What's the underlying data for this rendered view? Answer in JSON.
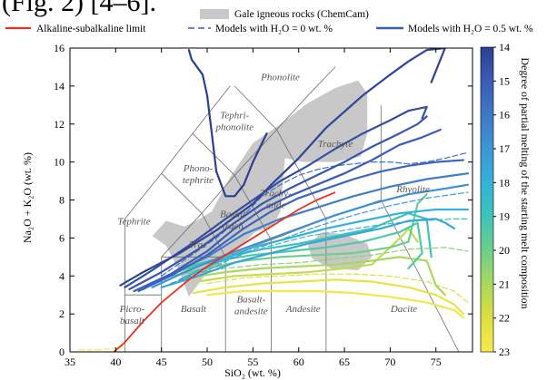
{
  "figure": {
    "caption": "(Fig. 2) [4–6]."
  },
  "legend": {
    "gale": "Gale igneous rocks (ChemCam)",
    "alkaline": "Alkaline-subalkaline limit",
    "models_dry": "Models with H₂O = 0 wt. %",
    "models_wet": "Models with H₂O = 0.5 wt. %"
  },
  "colorbar": {
    "title": "Degree of partial melting of the starting melt composition",
    "ticks": [
      "14",
      "15",
      "16",
      "17",
      "18",
      "19",
      "20",
      "21",
      "22",
      "23"
    ]
  },
  "colors": {
    "gale": "#c8c8c8",
    "alkaline_limit": "#e8321f",
    "tas_lines": "#6e6e6e",
    "colormap": [
      "#2c3f8f",
      "#3b5db6",
      "#3f78c6",
      "#3d96d6",
      "#35b2d8",
      "#3fc3b8",
      "#6ccf8c",
      "#a9d85e",
      "#dde042",
      "#f8e94d"
    ]
  },
  "chart_data": {
    "type": "line",
    "title": "",
    "xlabel": "SiO₂ (wt. %)",
    "ylabel": "Na₂O + K₂O (wt. %)",
    "xlim": [
      35,
      79
    ],
    "ylim": [
      0,
      16
    ],
    "xticks": [
      "35",
      "40",
      "45",
      "50",
      "55",
      "60",
      "65",
      "70",
      "75"
    ],
    "yticks": [
      "0",
      "2",
      "4",
      "6",
      "8",
      "10",
      "12",
      "14",
      "16"
    ],
    "grid": false,
    "fields": [
      {
        "name": "Picro-basalt",
        "lines": [
          "Picro-",
          "basalt"
        ],
        "x": 41.8,
        "y": 2.1
      },
      {
        "name": "Basalt",
        "lines": [
          "Basalt"
        ],
        "x": 48.5,
        "y": 2.1
      },
      {
        "name": "Basaltic andesite",
        "lines": [
          "Basalt-",
          "andesite"
        ],
        "x": 54.8,
        "y": 2.6
      },
      {
        "name": "Andesite",
        "lines": [
          "Andesite"
        ],
        "x": 60.5,
        "y": 2.1
      },
      {
        "name": "Dacite",
        "lines": [
          "Dacite"
        ],
        "x": 71.5,
        "y": 2.1
      },
      {
        "name": "Tephrite",
        "lines": [
          "Tephrite"
        ],
        "x": 42.0,
        "y": 6.7
      },
      {
        "name": "Trachybasalt",
        "lines": [
          "Trac"
        ],
        "x": 49.0,
        "y": 5.5
      },
      {
        "name": "Basaltic trachyandesite",
        "lines": [
          "Basalt",
          "trach"
        ],
        "x": 52.8,
        "y": 7.1
      },
      {
        "name": "Trachyandesite",
        "lines": [
          "Trachy-",
          "ande"
        ],
        "x": 57.5,
        "y": 8.2
      },
      {
        "name": "Phonotephrite",
        "lines": [
          "Phono-",
          "tephrite"
        ],
        "x": 49.0,
        "y": 9.5
      },
      {
        "name": "Tephriphonolite",
        "lines": [
          "Tephri-",
          "phonolite"
        ],
        "x": 53.0,
        "y": 12.3
      },
      {
        "name": "Phonolite",
        "lines": [
          "Phonolite"
        ],
        "x": 58.0,
        "y": 14.3
      },
      {
        "name": "Trachyte",
        "lines": [
          "Trachyte"
        ],
        "x": 64.0,
        "y": 10.8
      },
      {
        "name": "Rhyolite",
        "lines": [
          "Rhyolite"
        ],
        "x": 72.5,
        "y": 8.4
      }
    ],
    "tas_boundaries": [
      [
        [
          41,
          0
        ],
        [
          41,
          3
        ],
        [
          45,
          3
        ]
      ],
      [
        [
          45,
          0
        ],
        [
          45,
          5
        ],
        [
          52,
          5
        ],
        [
          57,
          5.9
        ],
        [
          63,
          7
        ],
        [
          69,
          8
        ]
      ],
      [
        [
          52,
          0
        ],
        [
          52,
          5
        ]
      ],
      [
        [
          57,
          0
        ],
        [
          57,
          5.9
        ]
      ],
      [
        [
          63,
          0
        ],
        [
          63,
          7
        ]
      ],
      [
        [
          69,
          8
        ],
        [
          77.5,
          0
        ]
      ],
      [
        [
          45,
          5
        ],
        [
          49.4,
          7.3
        ],
        [
          53,
          9.3
        ],
        [
          57.6,
          11.7
        ],
        [
          61,
          13.5
        ],
        [
          64,
          15
        ]
      ],
      [
        [
          41,
          3
        ],
        [
          41,
          7
        ],
        [
          45,
          9.4
        ],
        [
          48.4,
          11.5
        ],
        [
          52.5,
          14
        ]
      ],
      [
        [
          52,
          5
        ],
        [
          49.4,
          7.3
        ],
        [
          45,
          9.4
        ]
      ],
      [
        [
          57,
          5.9
        ],
        [
          53,
          9.3
        ],
        [
          48.4,
          11.5
        ]
      ],
      [
        [
          63,
          7
        ],
        [
          57.6,
          11.7
        ],
        [
          53,
          14
        ]
      ],
      [
        [
          69,
          8
        ],
        [
          69,
          13
        ]
      ]
    ],
    "alkaline_limit": {
      "x": [
        39.8,
        41,
        43,
        45,
        48,
        50,
        52,
        54,
        56,
        58,
        60,
        62,
        64
      ],
      "y": [
        0,
        0.5,
        1.6,
        2.6,
        3.8,
        4.5,
        5.1,
        5.7,
        6.3,
        6.9,
        7.5,
        8.0,
        8.4
      ]
    },
    "gale_igneous_region": {
      "x": [
        45.5,
        44.0,
        45.5,
        47.5,
        48.8,
        50.5,
        52.5,
        55.0,
        58.0,
        61.0,
        64.0,
        66.5,
        67.5,
        67.5,
        66.8,
        64.0,
        60.5,
        58.5,
        58.0,
        57.2,
        55.2,
        52.5,
        50.0,
        48.0,
        47.0
      ],
      "y": [
        5.6,
        6.1,
        6.9,
        6.6,
        6.9,
        7.4,
        9.2,
        11.0,
        12.0,
        13.1,
        13.9,
        14.3,
        13.6,
        11.5,
        10.3,
        10.0,
        10.0,
        10.2,
        7.4,
        6.6,
        6.3,
        5.0,
        4.2,
        2.9,
        4.2
      ]
    },
    "gale_igneous_region_2": {
      "x": [
        61.0,
        62.5,
        65.0,
        67.5,
        68.0,
        66.5,
        63.5,
        61.5
      ],
      "y": [
        5.6,
        6.3,
        6.2,
        5.7,
        5.0,
        4.3,
        4.4,
        4.9
      ]
    },
    "series": [
      {
        "name": "",
        "melt": 14.0,
        "style": "wet",
        "x": [
          48,
          48.3,
          49.5,
          50.0,
          50.5,
          51,
          52,
          53,
          54,
          55,
          56.5
        ],
        "y": [
          15.9,
          15.4,
          14.6,
          13.5,
          11.5,
          9.5,
          8.2,
          8.2,
          8.8,
          10,
          11.5
        ]
      },
      {
        "name": "",
        "melt": 14.2,
        "style": "wet",
        "x": [
          40.5,
          43,
          47,
          51,
          55,
          57,
          60,
          63,
          67,
          70,
          72,
          74,
          76,
          74.5
        ],
        "y": [
          3.5,
          4.2,
          5.2,
          6.4,
          7.8,
          8.8,
          10.2,
          11.8,
          13.5,
          14.6,
          15.3,
          15.9,
          16,
          14.2
        ]
      },
      {
        "name": "",
        "melt": 14.5,
        "style": "wet",
        "x": [
          41,
          44,
          48,
          52,
          55,
          58,
          61,
          64,
          67,
          70,
          72,
          74,
          73.5
        ],
        "y": [
          3.4,
          4.3,
          5.6,
          7,
          8.0,
          9.0,
          9.8,
          10.7,
          11.5,
          12.2,
          12.7,
          12.9,
          12.3
        ]
      },
      {
        "name": "",
        "melt": 14.8,
        "style": "wet",
        "x": [
          41.5,
          45,
          49,
          53,
          56,
          59,
          62,
          65,
          68,
          71,
          73,
          74
        ],
        "y": [
          3.3,
          4.2,
          5.4,
          6.8,
          7.8,
          8.6,
          9.3,
          10,
          10.8,
          11.5,
          12.0,
          12.4
        ]
      },
      {
        "name": "",
        "melt": 15.0,
        "style": "wet",
        "x": [
          42,
          46,
          50,
          53,
          56,
          59,
          62,
          65,
          68,
          71,
          73.5,
          75.5
        ],
        "y": [
          3.2,
          4.1,
          5.3,
          6.5,
          7.5,
          8.2,
          8.8,
          9.4,
          10.1,
          10.9,
          11.3,
          11.7
        ]
      },
      {
        "name": "",
        "melt": 15.3,
        "style": "wet",
        "x": [
          42.5,
          46,
          50,
          54,
          57,
          60,
          63,
          66,
          69,
          72,
          75,
          78
        ],
        "y": [
          3.2,
          4.0,
          5.1,
          6.5,
          7.4,
          8.1,
          8.6,
          9.1,
          9.5,
          9.8,
          10.0,
          10.1
        ]
      },
      {
        "name": "",
        "melt": 15.8,
        "style": "dry",
        "x": [
          45,
          48,
          51,
          54,
          56,
          58,
          60,
          62,
          64,
          66,
          68,
          70,
          72,
          74,
          76,
          78.5
        ],
        "y": [
          4.0,
          5.0,
          6.0,
          7.2,
          8.2,
          8.8,
          9.3,
          9.6,
          9.8,
          9.9,
          10.0,
          10.0,
          9.9,
          10.0,
          10.2,
          10.5
        ]
      },
      {
        "name": "",
        "melt": 16.2,
        "style": "wet",
        "x": [
          43,
          46,
          50,
          54,
          58,
          62,
          66,
          70,
          74,
          78.5
        ],
        "y": [
          3.3,
          4.1,
          5.0,
          6.2,
          7.0,
          7.6,
          8.2,
          8.7,
          9.1,
          9.4
        ]
      },
      {
        "name": "",
        "melt": 16.8,
        "style": "wet",
        "x": [
          44,
          48,
          52,
          56,
          60,
          64,
          68,
          72,
          76,
          78.5
        ],
        "y": [
          3.4,
          4.3,
          5.1,
          5.8,
          6.5,
          7.2,
          7.8,
          8.3,
          8.6,
          8.8
        ]
      },
      {
        "name": "",
        "melt": 17.2,
        "style": "dry",
        "x": [
          46,
          50,
          54,
          58,
          62,
          66,
          70,
          74,
          78.5
        ],
        "y": [
          3.6,
          4.3,
          5.2,
          5.9,
          6.6,
          7.2,
          7.7,
          8.1,
          8.4
        ]
      },
      {
        "name": "",
        "melt": 17.6,
        "style": "wet",
        "x": [
          45,
          49,
          53,
          57,
          61,
          65,
          69,
          72,
          75,
          76,
          77
        ],
        "y": [
          3.4,
          4.0,
          4.7,
          5.2,
          5.7,
          6.1,
          6.5,
          6.9,
          7.0,
          6.8,
          6.5
        ]
      },
      {
        "name": "",
        "melt": 18.0,
        "style": "wet",
        "x": [
          47,
          51,
          55,
          59,
          63,
          67,
          71,
          75,
          78.5
        ],
        "y": [
          3.8,
          4.7,
          5.5,
          6.0,
          6.5,
          6.9,
          7.3,
          7.5,
          7.5
        ]
      },
      {
        "name": "",
        "melt": 18.5,
        "style": "dry",
        "x": [
          49,
          53,
          57,
          61,
          65,
          69,
          73,
          77,
          78.5
        ],
        "y": [
          4.3,
          5.0,
          5.6,
          6.1,
          6.4,
          6.7,
          6.9,
          7.0,
          7.0
        ]
      },
      {
        "name": "",
        "melt": 19.0,
        "style": "wet",
        "x": [
          48,
          52,
          56,
          60,
          64,
          68,
          70,
          72,
          74,
          74.5
        ],
        "y": [
          4.5,
          5.0,
          5.4,
          5.7,
          6.1,
          6.5,
          6.9,
          7.3,
          7.0,
          5.0
        ]
      },
      {
        "name": "",
        "melt": 19.4,
        "style": "wet",
        "x": [
          47,
          51,
          55,
          59,
          63,
          67,
          71,
          73,
          73.5,
          72
        ],
        "y": [
          4.3,
          4.8,
          5.1,
          5.3,
          5.5,
          5.8,
          6.3,
          6.8,
          5.2,
          4.4
        ]
      },
      {
        "name": "",
        "melt": 20.0,
        "style": "wet",
        "x": [
          46,
          50,
          54,
          58,
          62,
          66,
          70,
          72,
          73,
          74
        ],
        "y": [
          4.0,
          4.4,
          4.8,
          5.0,
          5.1,
          5.2,
          5.5,
          5.8,
          7.8,
          8.3
        ]
      },
      {
        "name": "",
        "melt": 20.5,
        "style": "dry",
        "x": [
          48,
          52,
          56,
          60,
          64,
          68,
          72,
          76,
          78.5
        ],
        "y": [
          4.1,
          4.4,
          4.6,
          4.7,
          4.9,
          5.1,
          5.4,
          5.5,
          5.3
        ]
      },
      {
        "name": "",
        "melt": 21.0,
        "style": "wet",
        "x": [
          48,
          52,
          56,
          60,
          64,
          68,
          71,
          74,
          75,
          76
        ],
        "y": [
          3.9,
          4.2,
          4.4,
          4.5,
          4.6,
          4.8,
          5.0,
          4.8,
          3.5,
          3.0
        ]
      },
      {
        "name": "",
        "melt": 21.5,
        "style": "wet",
        "x": [
          49,
          53,
          57,
          61,
          65,
          68,
          70,
          71.5,
          72,
          73
        ],
        "y": [
          3.7,
          4.0,
          4.1,
          4.2,
          4.4,
          4.6,
          5.5,
          6.2,
          6.5,
          5.8
        ]
      },
      {
        "name": "",
        "melt": 22.0,
        "style": "dry",
        "x": [
          50,
          54,
          58,
          62,
          66,
          70,
          74,
          77,
          78.5
        ],
        "y": [
          3.6,
          3.9,
          4.0,
          4.1,
          4.1,
          4.0,
          3.7,
          3.2,
          2.6
        ]
      },
      {
        "name": "",
        "melt": 22.4,
        "style": "wet",
        "x": [
          48.5,
          52,
          56,
          60,
          64,
          68,
          72,
          75,
          77,
          78
        ],
        "y": [
          3.1,
          3.4,
          3.6,
          3.7,
          3.8,
          3.7,
          3.4,
          3.0,
          2.5,
          2.0
        ]
      },
      {
        "name": "",
        "melt": 22.8,
        "style": "wet",
        "x": [
          50,
          54,
          58,
          62,
          66,
          70,
          74,
          77,
          78
        ],
        "y": [
          3.0,
          3.2,
          3.2,
          3.2,
          3.1,
          2.9,
          2.6,
          2.2,
          1.8
        ]
      },
      {
        "name": "",
        "melt": 23.0,
        "style": "dry",
        "x": [
          36,
          38,
          40,
          41
        ],
        "y": [
          0.1,
          0.1,
          0.2,
          0.3
        ]
      }
    ]
  }
}
